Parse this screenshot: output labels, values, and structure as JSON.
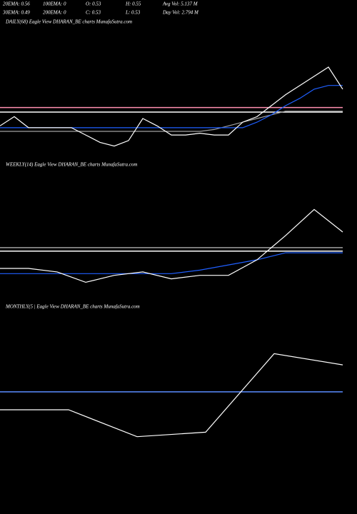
{
  "header": [
    [
      "20EMA: 0.56",
      "100EMA: 0",
      "O: 0.53",
      "H: 0.55",
      "Avg Vol: 5.137 M"
    ],
    [
      "30EMA: 0.49",
      "200EMA: 0",
      "C: 0.53",
      "L: 0.53",
      "Day Vol: 2.794 M"
    ]
  ],
  "chart_data": [
    {
      "type": "line",
      "title": "DAILY(68) Eagle View DHARAN_BE charts MunafaSutra.com",
      "ylim": [
        0.3,
        1.0
      ],
      "hlines": [
        {
          "value": 0.57,
          "color": "#ff8fb0"
        },
        {
          "value": 0.545,
          "color": "#ffffff"
        }
      ],
      "series": [
        {
          "color": "#a0a0a0",
          "values": [
            0.44,
            0.44,
            0.44,
            0.44,
            0.44,
            0.44,
            0.44,
            0.44,
            0.44,
            0.44,
            0.44,
            0.44,
            0.44,
            0.44,
            0.44,
            0.45,
            0.47,
            0.49,
            0.51,
            0.53,
            0.55,
            0.55,
            0.55,
            0.55,
            0.55
          ]
        },
        {
          "color": "#1f5fff",
          "values": [
            0.46,
            0.46,
            0.46,
            0.46,
            0.46,
            0.46,
            0.46,
            0.46,
            0.46,
            0.46,
            0.46,
            0.46,
            0.46,
            0.46,
            0.46,
            0.46,
            0.46,
            0.46,
            0.49,
            0.53,
            0.58,
            0.62,
            0.67,
            0.69,
            0.69
          ]
        },
        {
          "color": "#ffffff",
          "values": [
            0.47,
            0.52,
            0.46,
            0.46,
            0.46,
            0.46,
            0.42,
            0.38,
            0.36,
            0.39,
            0.51,
            0.47,
            0.42,
            0.42,
            0.43,
            0.42,
            0.42,
            0.49,
            0.52,
            0.58,
            0.64,
            0.69,
            0.74,
            0.79,
            0.67
          ]
        }
      ]
    },
    {
      "type": "line",
      "title": "WEEKLY(14) Eagle View DHARAN_BE charts MunafaSutra.com",
      "ylim": [
        0.3,
        1.0
      ],
      "hlines": [
        {
          "value": 0.56,
          "color": "#a0a0a0"
        },
        {
          "value": 0.54,
          "color": "#ffffff"
        }
      ],
      "series": [
        {
          "color": "#1f5fff",
          "values": [
            0.41,
            0.41,
            0.41,
            0.41,
            0.41,
            0.41,
            0.41,
            0.43,
            0.46,
            0.49,
            0.53,
            0.53,
            0.53
          ]
        },
        {
          "color": "#ffffff",
          "values": [
            0.44,
            0.44,
            0.42,
            0.36,
            0.4,
            0.42,
            0.38,
            0.4,
            0.4,
            0.49,
            0.63,
            0.78,
            0.65
          ]
        }
      ]
    },
    {
      "type": "line",
      "title": "MONTHLY(5 | Eagle View DHARAN_BE charts MunafaSutra.com",
      "ylim": [
        0.3,
        1.0
      ],
      "hlines": [
        {
          "value": 0.59,
          "color": "#5a8cff"
        }
      ],
      "series": [
        {
          "color": "#ffffff",
          "values": [
            0.51,
            0.51,
            0.39,
            0.41,
            0.76,
            0.71
          ]
        }
      ]
    }
  ]
}
